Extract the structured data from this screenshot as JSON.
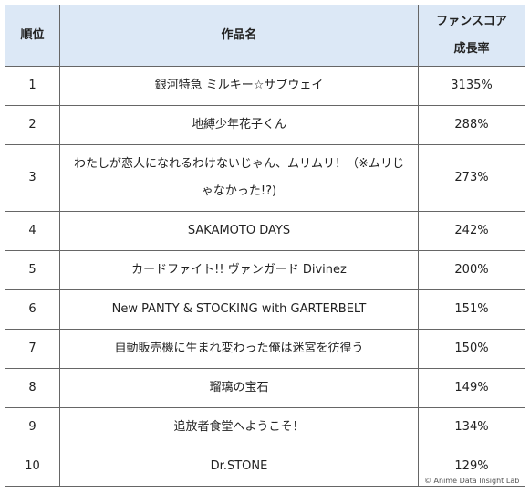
{
  "table": {
    "header": {
      "rank": "順位",
      "title": "作品名",
      "score": [
        "ファンスコア",
        "成長率"
      ]
    },
    "rows": [
      [
        1,
        "銀河特急 ミルキー☆サブウェイ",
        "3135%"
      ],
      [
        2,
        "地縛少年花子くん",
        "288%"
      ],
      [
        3,
        "わたしが恋人になれるわけないじゃん、ムリムリ！（※ムリじゃなかった!?)",
        "273%"
      ],
      [
        4,
        "SAKAMOTO DAYS",
        "242%"
      ],
      [
        5,
        "カードファイト!! ヴァンガード Divinez",
        "200%"
      ],
      [
        6,
        "New PANTY & STOCKING with GARTERBELT",
        "151%"
      ],
      [
        7,
        "自動販売機に生まれ変わった俺は迷宮を彷徨う",
        "150%"
      ],
      [
        8,
        "瑠璃の宝石",
        "149%"
      ],
      [
        9,
        "追放者食堂へようこそ！",
        "134%"
      ],
      [
        10,
        "Dr.STONE",
        "129%"
      ]
    ]
  },
  "watermark": "© Anime Data Insight Lab"
}
